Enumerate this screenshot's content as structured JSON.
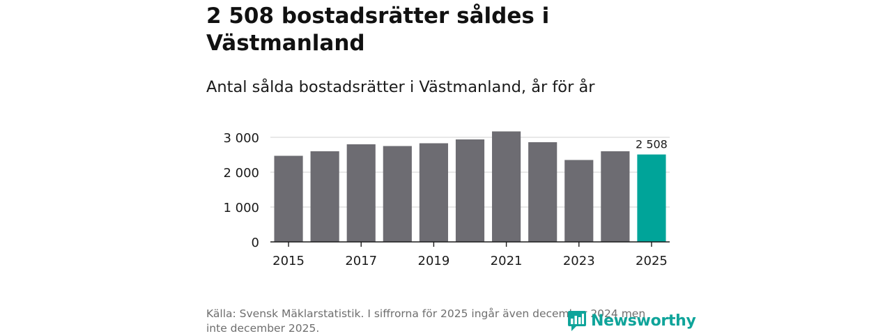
{
  "header": {
    "title": "2 508 bostadsrätter såldes i Västmanland",
    "subtitle": "Antal sålda bostadsrätter i Västmanland, år för år"
  },
  "footer": {
    "source": "Källa: Svensk Mäklarstatistik. I siffrorna för 2025 ingår även december 2024 men inte december 2025.",
    "logo_text": "Newsworthy"
  },
  "colors": {
    "bar": "#6d6c72",
    "highlight": "#00a499",
    "grid": "#d9d9d9",
    "axis": "#1a1a1a",
    "text": "#1a1a1a",
    "brand": "#0fa49a"
  },
  "chart_data": {
    "type": "bar",
    "title": "Antal sålda bostadsrätter i Västmanland, år för år",
    "xlabel": "",
    "ylabel": "",
    "categories": [
      "2015",
      "2016",
      "2017",
      "2018",
      "2019",
      "2020",
      "2021",
      "2022",
      "2023",
      "2024",
      "2025"
    ],
    "values": [
      2470,
      2600,
      2800,
      2750,
      2830,
      2940,
      3170,
      2860,
      2350,
      2600,
      2508
    ],
    "x_tick_labels": [
      "2015",
      "2017",
      "2019",
      "2021",
      "2023",
      "2025"
    ],
    "y_ticks": [
      0,
      1000,
      2000,
      3000
    ],
    "y_tick_labels": [
      "0",
      "1 000",
      "2 000",
      "3 000"
    ],
    "ylim": [
      0,
      3200
    ],
    "highlight_category": "2025",
    "annotation": {
      "category": "2025",
      "text": "2 508"
    },
    "grid": true
  }
}
